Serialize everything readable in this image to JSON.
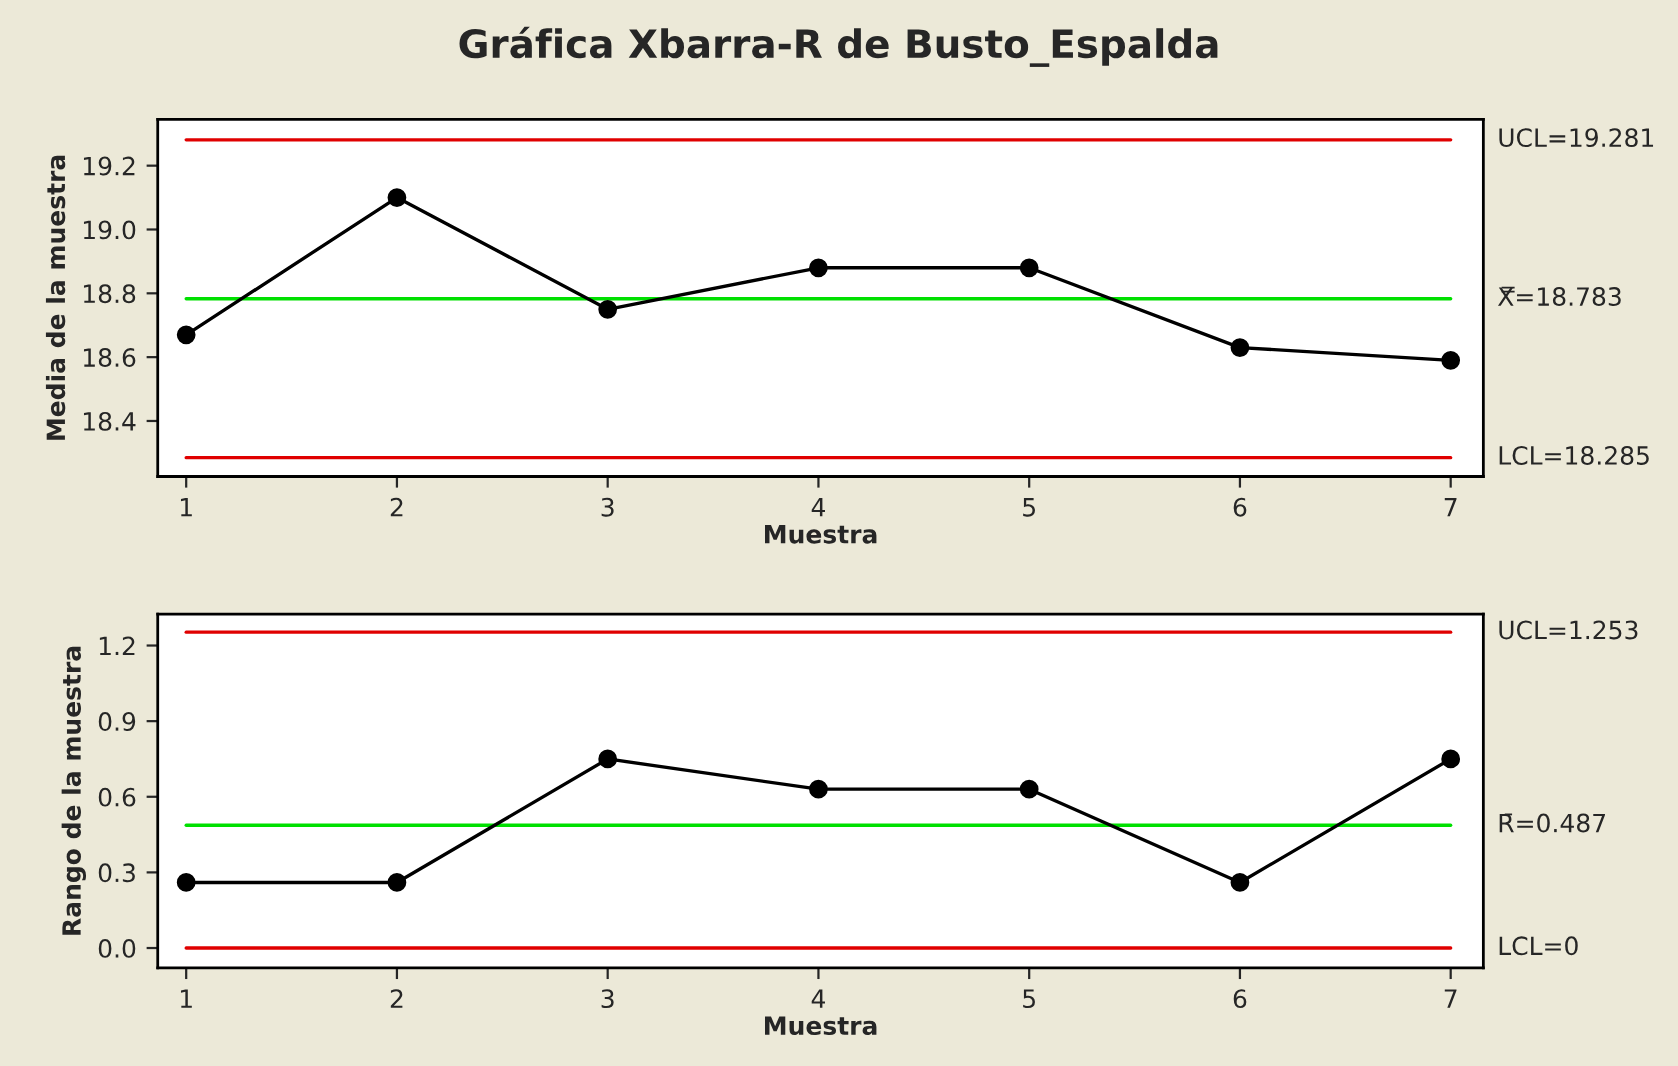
{
  "chart_data": [
    {
      "type": "line",
      "title": "Gráfica Xbarra-R de Busto_Espalda",
      "xlabel": "Muestra",
      "ylabel": "Media de la muestra",
      "x": [
        1,
        2,
        3,
        4,
        5,
        6,
        7
      ],
      "series": [
        {
          "color": "#000000",
          "values": [
            18.67,
            19.1,
            18.75,
            18.88,
            18.88,
            18.63,
            18.59
          ]
        }
      ],
      "xlim": [
        0.865,
        7.155
      ],
      "xticks": [
        1,
        2,
        3,
        4,
        5,
        6,
        7
      ],
      "ylim": [
        18.226,
        19.345
      ],
      "yticks": [
        18.4,
        18.6,
        18.8,
        {
          "value": 19,
          "label": "19.0"
        },
        19.2
      ],
      "ref_lines": [
        {
          "axis": "y",
          "value": 19.281,
          "label": "UCL=19.281",
          "color": "#e00000"
        },
        {
          "axis": "y",
          "value": 18.783,
          "label": "X̿=18.783",
          "color": "#00e000"
        },
        {
          "axis": "y",
          "value": 18.285,
          "label": "LCL=18.285",
          "color": "#e00000"
        }
      ],
      "grid": false,
      "marker": "circle",
      "line_style": "solid"
    },
    {
      "type": "line",
      "xlabel": "Muestra",
      "ylabel": "Rango de la muestra",
      "x": [
        1,
        2,
        3,
        4,
        5,
        6,
        7
      ],
      "series": [
        {
          "color": "#000000",
          "values": [
            0.26,
            0.26,
            0.75,
            0.63,
            0.63,
            0.26,
            0.75
          ]
        }
      ],
      "xlim": [
        0.865,
        7.155
      ],
      "xticks": [
        1,
        2,
        3,
        4,
        5,
        6,
        7
      ],
      "ylim": [
        -0.079,
        1.325
      ],
      "yticks": [
        {
          "value": 0,
          "label": "0.0"
        },
        0.3,
        0.6,
        0.9,
        1.2
      ],
      "ref_lines": [
        {
          "axis": "y",
          "value": 1.253,
          "label": "UCL=1.253",
          "color": "#e00000"
        },
        {
          "axis": "y",
          "value": 0.487,
          "label": "R̄=0.487",
          "color": "#00e000"
        },
        {
          "axis": "y",
          "value": 0,
          "label": "LCL=0",
          "color": "#e00000"
        }
      ],
      "grid": false,
      "marker": "circle",
      "line_style": "solid"
    }
  ]
}
